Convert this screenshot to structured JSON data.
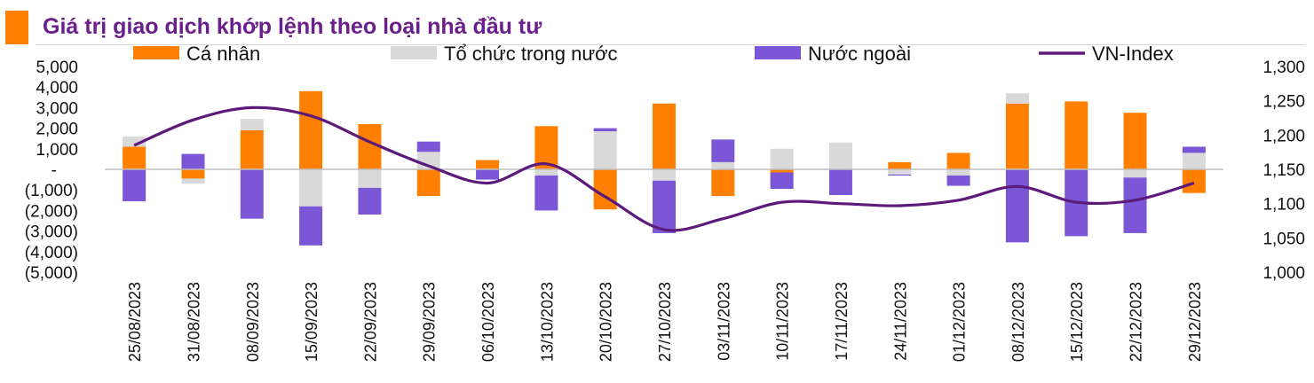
{
  "title": "Giá trị giao dịch khớp lệnh theo loại nhà đầu tư",
  "colors": {
    "title": "#6a1f8a",
    "accent": "#ff7f00",
    "ca_nhan": "#ff7f00",
    "to_chuc": "#d9d9d9",
    "nuoc_ngoai": "#7b56d6",
    "vn_index": "#5c1a7a"
  },
  "chart_data": {
    "type": "bar",
    "stacked": true,
    "categories": [
      "25/08/2023",
      "31/08/2023",
      "08/09/2023",
      "15/09/2023",
      "22/09/2023",
      "29/09/2023",
      "06/10/2023",
      "13/10/2023",
      "20/10/2023",
      "27/10/2023",
      "03/11/2023",
      "10/11/2023",
      "17/11/2023",
      "24/11/2023",
      "01/12/2023",
      "08/12/2023",
      "15/12/2023",
      "22/12/2023",
      "29/12/2023"
    ],
    "series": [
      {
        "name": "Cá nhân",
        "color": "#ff7f00",
        "axis": "left",
        "values": [
          1100,
          -450,
          1900,
          3800,
          2200,
          -1300,
          450,
          2100,
          -1950,
          3200,
          -1300,
          -150,
          0,
          350,
          800,
          3200,
          3300,
          2750,
          -1150
        ]
      },
      {
        "name": "Tổ chức trong nước",
        "color": "#d9d9d9",
        "axis": "left",
        "values": [
          500,
          -250,
          550,
          -1800,
          -900,
          850,
          0,
          -300,
          1850,
          -550,
          350,
          1000,
          1300,
          -250,
          -300,
          500,
          0,
          -400,
          800
        ]
      },
      {
        "name": "Nước ngoài",
        "color": "#7b56d6",
        "axis": "left",
        "values": [
          -1550,
          750,
          -2400,
          -1900,
          -1300,
          500,
          -500,
          -1700,
          150,
          -2550,
          1100,
          -800,
          -1250,
          -50,
          -500,
          -3550,
          -3250,
          -2700,
          300
        ]
      },
      {
        "name": "VN-Index",
        "type": "line",
        "color": "#5c1a7a",
        "axis": "right",
        "values": [
          1185,
          1222,
          1240,
          1228,
          1190,
          1155,
          1130,
          1158,
          1110,
          1062,
          1078,
          1102,
          1100,
          1097,
          1105,
          1125,
          1102,
          1105,
          1130
        ]
      }
    ],
    "left_axis": {
      "ylim": [
        -5000,
        5000
      ],
      "ticks": [
        "5,000",
        "4,000",
        "3,000",
        "2,000",
        "1,000",
        "-",
        "(1,000)",
        "(2,000)",
        "(3,000)",
        "(4,000)",
        "(5,000)"
      ]
    },
    "right_axis": {
      "ylim": [
        1000,
        1300
      ],
      "ticks": [
        "1,300",
        "1,250",
        "1,200",
        "1,150",
        "1,100",
        "1,050",
        "1,000"
      ]
    },
    "legend": {
      "placement": "top",
      "items": [
        "Cá nhân",
        "Tổ chức trong nước",
        "Nước ngoài",
        "VN-Index"
      ]
    },
    "grid": false
  }
}
